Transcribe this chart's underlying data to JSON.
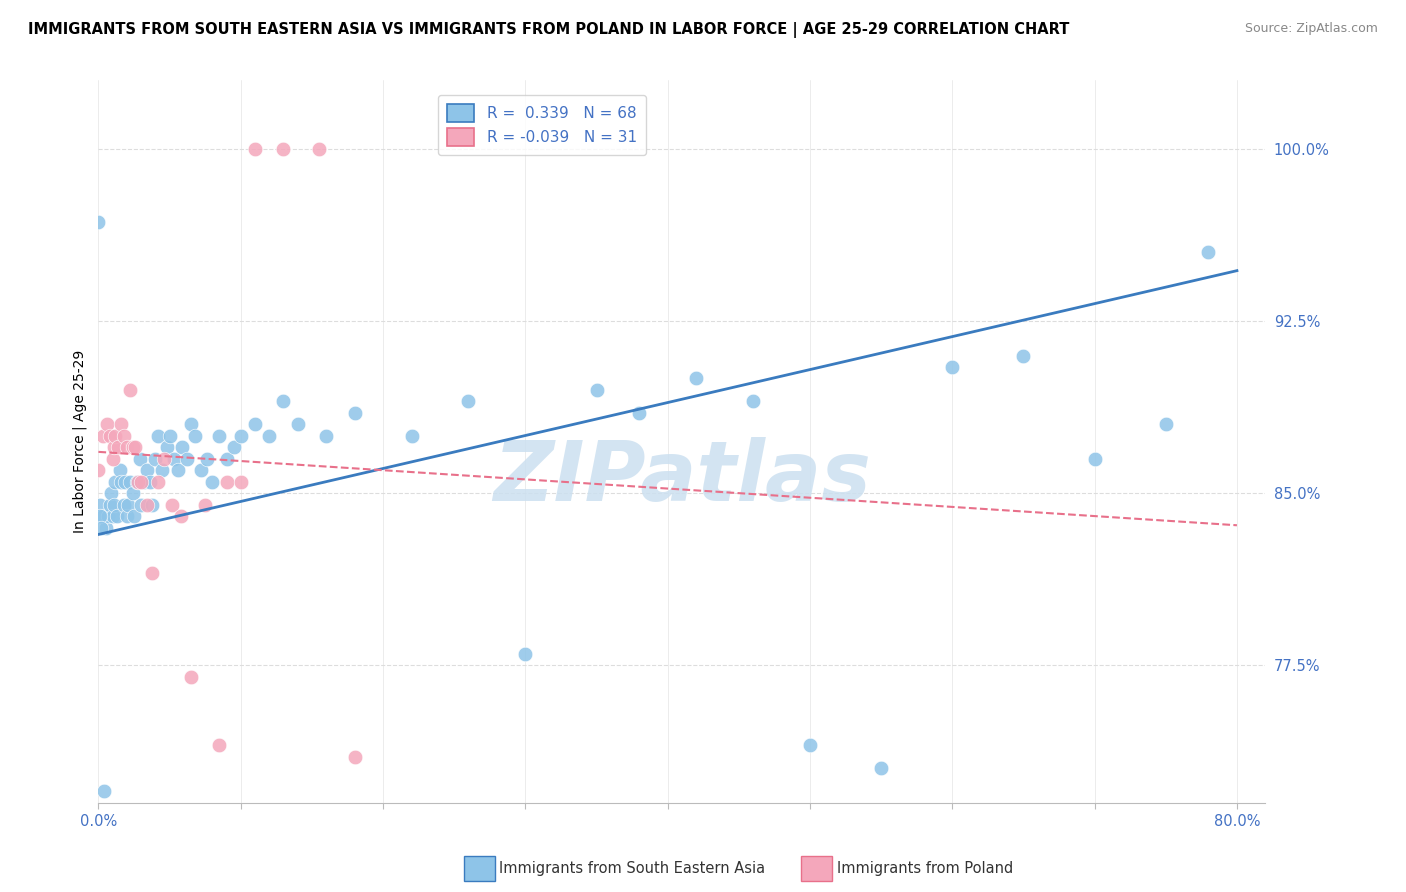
{
  "title": "IMMIGRANTS FROM SOUTH EASTERN ASIA VS IMMIGRANTS FROM POLAND IN LABOR FORCE | AGE 25-29 CORRELATION CHART",
  "source": "Source: ZipAtlas.com",
  "ylabel": "In Labor Force | Age 25-29",
  "xlim": [
    0.0,
    0.82
  ],
  "ylim": [
    0.715,
    1.03
  ],
  "ytick_positions": [
    0.775,
    0.85,
    0.925,
    1.0
  ],
  "ytick_labels": [
    "77.5%",
    "85.0%",
    "92.5%",
    "100.0%"
  ],
  "xtick_positions": [
    0.0,
    0.1,
    0.2,
    0.3,
    0.4,
    0.5,
    0.6,
    0.7,
    0.8
  ],
  "color_blue": "#8ec4e8",
  "color_pink": "#f4a7bb",
  "trendline_blue": "#3a7bbf",
  "trendline_pink": "#e8708a",
  "legend_entries": [
    {
      "r": "R =  0.339",
      "n": "N = 68",
      "color": "#8ec4e8",
      "edge": "#3a7bbf"
    },
    {
      "r": "R = -0.039",
      "n": "N = 31",
      "color": "#f4a7bb",
      "edge": "#e8708a"
    }
  ],
  "blue_scatter_x": [
    0.001,
    0.003,
    0.005,
    0.007,
    0.008,
    0.009,
    0.01,
    0.011,
    0.012,
    0.013,
    0.015,
    0.016,
    0.018,
    0.019,
    0.02,
    0.021,
    0.022,
    0.024,
    0.025,
    0.027,
    0.029,
    0.03,
    0.032,
    0.034,
    0.036,
    0.038,
    0.04,
    0.042,
    0.045,
    0.048,
    0.05,
    0.053,
    0.056,
    0.059,
    0.062,
    0.065,
    0.068,
    0.072,
    0.076,
    0.08,
    0.085,
    0.09,
    0.095,
    0.1,
    0.11,
    0.12,
    0.13,
    0.14,
    0.16,
    0.18,
    0.22,
    0.26,
    0.3,
    0.35,
    0.38,
    0.42,
    0.46,
    0.5,
    0.55,
    0.6,
    0.65,
    0.7,
    0.75,
    0.78,
    0.0,
    0.001,
    0.002,
    0.004
  ],
  "blue_scatter_y": [
    0.845,
    0.84,
    0.835,
    0.84,
    0.845,
    0.85,
    0.84,
    0.845,
    0.855,
    0.84,
    0.86,
    0.855,
    0.845,
    0.855,
    0.84,
    0.845,
    0.855,
    0.85,
    0.84,
    0.855,
    0.865,
    0.845,
    0.855,
    0.86,
    0.855,
    0.845,
    0.865,
    0.875,
    0.86,
    0.87,
    0.875,
    0.865,
    0.86,
    0.87,
    0.865,
    0.88,
    0.875,
    0.86,
    0.865,
    0.855,
    0.875,
    0.865,
    0.87,
    0.875,
    0.88,
    0.875,
    0.89,
    0.88,
    0.875,
    0.885,
    0.875,
    0.89,
    0.78,
    0.895,
    0.885,
    0.9,
    0.89,
    0.74,
    0.73,
    0.905,
    0.91,
    0.865,
    0.88,
    0.955,
    0.968,
    0.84,
    0.835,
    0.72
  ],
  "pink_scatter_x": [
    0.0,
    0.003,
    0.006,
    0.008,
    0.01,
    0.011,
    0.012,
    0.014,
    0.016,
    0.018,
    0.02,
    0.022,
    0.024,
    0.026,
    0.028,
    0.03,
    0.034,
    0.038,
    0.042,
    0.046,
    0.052,
    0.058,
    0.065,
    0.075,
    0.085,
    0.09,
    0.1,
    0.11,
    0.13,
    0.155,
    0.18
  ],
  "pink_scatter_y": [
    0.86,
    0.875,
    0.88,
    0.875,
    0.865,
    0.87,
    0.875,
    0.87,
    0.88,
    0.875,
    0.87,
    0.895,
    0.87,
    0.87,
    0.855,
    0.855,
    0.845,
    0.815,
    0.855,
    0.865,
    0.845,
    0.84,
    0.77,
    0.845,
    0.74,
    0.855,
    0.855,
    1.0,
    1.0,
    1.0,
    0.735
  ],
  "blue_trend_x": [
    0.0,
    0.8
  ],
  "blue_trend_y": [
    0.832,
    0.947
  ],
  "pink_trend_x": [
    0.0,
    0.8
  ],
  "pink_trend_y": [
    0.868,
    0.836
  ],
  "grid_color": "#dddddd",
  "watermark_text": "ZIPatlas",
  "watermark_color": "#cce0f0",
  "background_color": "#ffffff",
  "tick_color": "#4472c4",
  "title_fontsize": 10.5,
  "source_fontsize": 9,
  "axis_label_fontsize": 10,
  "tick_fontsize": 10.5
}
